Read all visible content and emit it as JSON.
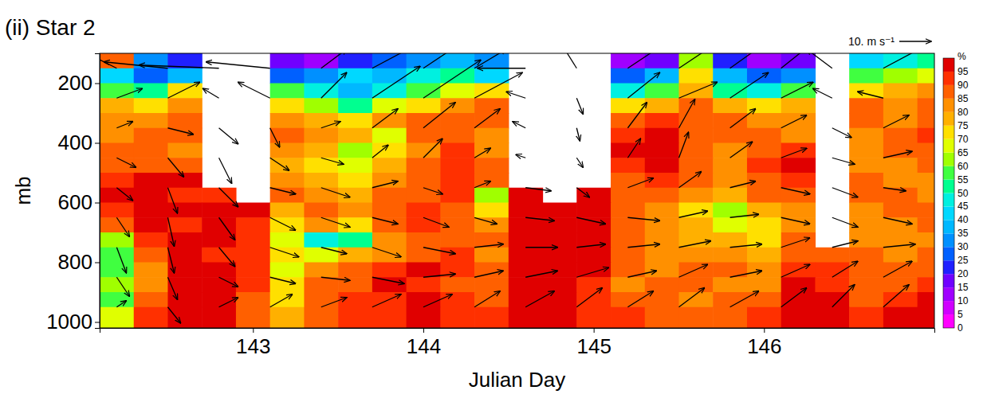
{
  "chart_data": {
    "type": "heatmap",
    "title": "(ii) Star 2",
    "x_label": "Julian Day",
    "y_label": "mb",
    "xlim": [
      142.1,
      147.0
    ],
    "xticks": [
      143,
      144,
      145,
      146
    ],
    "ylim": [
      1020,
      100
    ],
    "yticks": [
      200,
      400,
      600,
      800,
      1000
    ],
    "rh": {
      "x_edges": [
        142.1,
        142.3,
        142.5,
        142.7,
        142.9,
        143.1,
        143.3,
        143.5,
        143.7,
        143.9,
        144.1,
        144.3,
        144.5,
        144.7,
        144.9,
        145.1,
        145.3,
        145.5,
        145.7,
        145.9,
        146.1,
        146.3,
        146.5,
        146.7,
        146.9,
        147.0
      ],
      "p_edges": [
        100,
        150,
        200,
        250,
        300,
        350,
        400,
        450,
        500,
        550,
        600,
        650,
        700,
        750,
        800,
        850,
        900,
        950,
        1020
      ],
      "values": [
        [
          85,
          30,
          20,
          null,
          null,
          15,
          10,
          20,
          25,
          30,
          35,
          30,
          null,
          null,
          null,
          10,
          15,
          60,
          20,
          10,
          15,
          null,
          40,
          45,
          50
        ],
        [
          40,
          25,
          35,
          null,
          null,
          25,
          30,
          40,
          35,
          45,
          50,
          40,
          null,
          null,
          null,
          25,
          35,
          70,
          35,
          25,
          30,
          null,
          55,
          60,
          65
        ],
        [
          55,
          50,
          70,
          null,
          null,
          55,
          45,
          35,
          45,
          55,
          65,
          70,
          null,
          null,
          null,
          45,
          55,
          75,
          50,
          45,
          55,
          null,
          70,
          75,
          80
        ],
        [
          75,
          70,
          80,
          null,
          null,
          70,
          60,
          50,
          65,
          70,
          80,
          85,
          null,
          null,
          null,
          70,
          75,
          85,
          75,
          70,
          75,
          null,
          85,
          80,
          85
        ],
        [
          80,
          80,
          85,
          null,
          null,
          80,
          75,
          70,
          80,
          85,
          85,
          85,
          null,
          null,
          null,
          85,
          90,
          85,
          85,
          80,
          80,
          null,
          85,
          80,
          85
        ],
        [
          80,
          85,
          85,
          null,
          null,
          85,
          80,
          75,
          65,
          85,
          85,
          80,
          null,
          null,
          null,
          90,
          95,
          85,
          85,
          85,
          80,
          null,
          80,
          85,
          90
        ],
        [
          85,
          85,
          80,
          null,
          null,
          80,
          75,
          60,
          70,
          80,
          90,
          80,
          null,
          null,
          null,
          95,
          95,
          85,
          80,
          85,
          90,
          null,
          80,
          85,
          85
        ],
        [
          85,
          85,
          85,
          null,
          null,
          75,
          70,
          65,
          75,
          85,
          90,
          85,
          null,
          null,
          null,
          90,
          95,
          85,
          80,
          90,
          95,
          null,
          80,
          80,
          85
        ],
        [
          90,
          95,
          95,
          null,
          null,
          80,
          75,
          70,
          80,
          85,
          90,
          85,
          null,
          null,
          null,
          85,
          90,
          85,
          80,
          85,
          90,
          null,
          85,
          80,
          80
        ],
        [
          95,
          95,
          90,
          90,
          null,
          85,
          80,
          75,
          85,
          85,
          90,
          60,
          95,
          null,
          95,
          85,
          85,
          80,
          75,
          85,
          85,
          null,
          85,
          85,
          80
        ],
        [
          90,
          95,
          95,
          95,
          95,
          75,
          85,
          80,
          85,
          90,
          85,
          70,
          95,
          95,
          95,
          85,
          80,
          70,
          60,
          75,
          80,
          null,
          80,
          85,
          85
        ],
        [
          85,
          95,
          90,
          95,
          90,
          70,
          80,
          70,
          85,
          90,
          85,
          80,
          95,
          95,
          95,
          85,
          80,
          75,
          65,
          70,
          80,
          null,
          80,
          80,
          85
        ],
        [
          60,
          90,
          95,
          95,
          90,
          65,
          45,
          50,
          80,
          85,
          85,
          85,
          95,
          95,
          95,
          85,
          80,
          75,
          75,
          70,
          85,
          null,
          80,
          80,
          80
        ],
        [
          55,
          85,
          95,
          90,
          90,
          70,
          65,
          75,
          80,
          85,
          90,
          80,
          95,
          95,
          95,
          85,
          80,
          80,
          80,
          75,
          85,
          85,
          85,
          80,
          85
        ],
        [
          55,
          80,
          95,
          95,
          90,
          65,
          80,
          85,
          90,
          95,
          90,
          85,
          95,
          95,
          95,
          85,
          80,
          85,
          85,
          80,
          90,
          90,
          85,
          85,
          85
        ],
        [
          60,
          80,
          95,
          95,
          90,
          70,
          85,
          85,
          95,
          90,
          85,
          85,
          95,
          95,
          90,
          80,
          85,
          85,
          80,
          80,
          95,
          90,
          85,
          85,
          90
        ],
        [
          55,
          85,
          95,
          95,
          85,
          70,
          85,
          90,
          90,
          95,
          90,
          85,
          95,
          95,
          90,
          85,
          85,
          80,
          85,
          85,
          95,
          95,
          85,
          90,
          95
        ],
        [
          65,
          90,
          95,
          95,
          85,
          75,
          85,
          90,
          90,
          95,
          90,
          90,
          95,
          95,
          90,
          90,
          85,
          85,
          85,
          90,
          95,
          95,
          90,
          95,
          95
        ]
      ]
    },
    "colorbar": {
      "label": "%",
      "range": [
        0,
        100
      ],
      "ticks": [
        0,
        5,
        10,
        15,
        20,
        25,
        30,
        35,
        40,
        45,
        50,
        55,
        60,
        65,
        70,
        75,
        80,
        85,
        90,
        95
      ],
      "colors": [
        "#ff00ff",
        "#d000ff",
        "#a000ff",
        "#7000ff",
        "#2020ff",
        "#0060ff",
        "#0090ff",
        "#00b8ff",
        "#00d8ff",
        "#00f0e0",
        "#00ff90",
        "#40ff40",
        "#a0ff00",
        "#e0ff00",
        "#ffe000",
        "#ffb000",
        "#ff9000",
        "#ff6000",
        "#ff3000",
        "#e00000"
      ]
    },
    "wind": {
      "x": [
        142.2,
        142.5,
        142.8,
        143.1,
        143.4,
        143.7,
        144.0,
        144.3,
        144.6,
        144.9,
        145.2,
        145.5,
        145.8,
        146.1,
        146.4,
        146.7
      ],
      "p": [
        150,
        250,
        350,
        450,
        550,
        650,
        750,
        850,
        950
      ],
      "u": [
        [
          -10,
          -20,
          -25,
          -20,
          8,
          15,
          12,
          10,
          -15,
          -5,
          15,
          12,
          14,
          10,
          -8,
          15
        ],
        [
          8,
          10,
          -5,
          -10,
          8,
          15,
          18,
          15,
          -6,
          2,
          10,
          12,
          12,
          10,
          -6,
          -8
        ],
        [
          5,
          8,
          6,
          3,
          6,
          8,
          10,
          8,
          -4,
          1,
          6,
          5,
          8,
          8,
          6,
          8
        ],
        [
          6,
          5,
          4,
          6,
          7,
          5,
          6,
          5,
          -3,
          2,
          4,
          3,
          7,
          8,
          7,
          9
        ],
        [
          5,
          3,
          6,
          8,
          9,
          8,
          6,
          5,
          8,
          4,
          8,
          7,
          8,
          9,
          8,
          7
        ],
        [
          4,
          2,
          5,
          8,
          9,
          8,
          8,
          7,
          9,
          9,
          10,
          9,
          9,
          9,
          8,
          9
        ],
        [
          3,
          2,
          5,
          9,
          8,
          9,
          10,
          9,
          10,
          9,
          10,
          10,
          10,
          9,
          8,
          10
        ],
        [
          4,
          3,
          6,
          8,
          9,
          10,
          10,
          9,
          10,
          10,
          9,
          9,
          10,
          9,
          8,
          9
        ],
        [
          3,
          4,
          6,
          7,
          8,
          9,
          9,
          8,
          9,
          8,
          8,
          8,
          9,
          8,
          7,
          8
        ]
      ],
      "v": [
        [
          5,
          2,
          1,
          2,
          6,
          8,
          8,
          6,
          0,
          8,
          10,
          8,
          10,
          8,
          6,
          8
        ],
        [
          3,
          5,
          3,
          5,
          8,
          10,
          12,
          8,
          2,
          -5,
          8,
          5,
          8,
          5,
          3,
          2
        ],
        [
          2,
          -2,
          -5,
          -6,
          2,
          6,
          8,
          6,
          2,
          -4,
          8,
          9,
          6,
          4,
          -3,
          4
        ],
        [
          -3,
          -6,
          -8,
          -4,
          -2,
          4,
          6,
          3,
          1,
          -3,
          6,
          8,
          5,
          3,
          -2,
          2
        ],
        [
          -4,
          -8,
          -6,
          -2,
          -3,
          2,
          -2,
          2,
          -1,
          -3,
          3,
          5,
          2,
          -2,
          -3,
          -1
        ],
        [
          -6,
          -9,
          -7,
          -4,
          -3,
          -2,
          -3,
          -2,
          -1,
          -2,
          -1,
          2,
          1,
          -2,
          -3,
          -2
        ],
        [
          -8,
          -8,
          -6,
          -3,
          -2,
          -3,
          -2,
          1,
          0,
          1,
          1,
          2,
          1,
          3,
          2,
          1
        ],
        [
          -6,
          -7,
          -3,
          -2,
          -1,
          -2,
          1,
          2,
          2,
          3,
          2,
          4,
          2,
          4,
          5,
          5
        ],
        [
          2,
          -5,
          3,
          4,
          3,
          4,
          4,
          5,
          5,
          6,
          5,
          6,
          5,
          6,
          7,
          7
        ]
      ]
    },
    "vector_key": {
      "value": 10,
      "label": "10. m s⁻¹"
    }
  }
}
